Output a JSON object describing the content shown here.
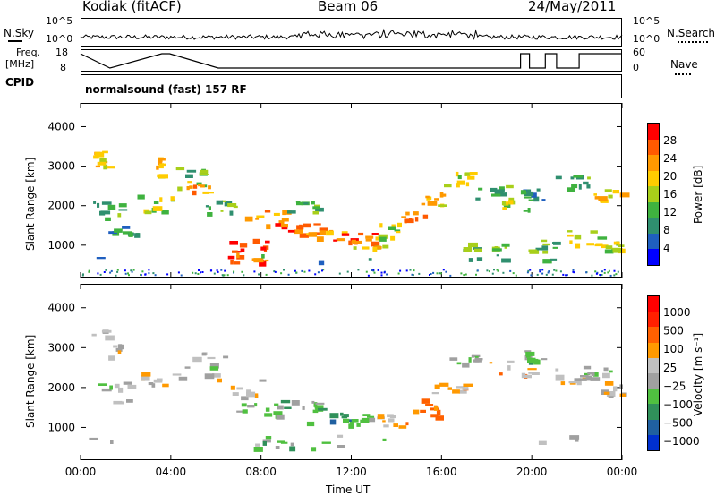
{
  "header": {
    "site": "Kodiak (fitACF)",
    "beam": "Beam 06",
    "date": "24/May/2011"
  },
  "noise_panel": {
    "left_label": "N.Sky",
    "right_label": "N.Search",
    "y_ticks": [
      "10^5",
      "10^0"
    ]
  },
  "freq_panel": {
    "left_label_1": "Freq.",
    "left_label_2": "[MHz]",
    "left_ticks": [
      "18",
      "8"
    ],
    "right_label": "Nave",
    "right_ticks": [
      "60",
      "0"
    ]
  },
  "cpid": {
    "label": "CPID",
    "value": "normalsound (fast) 157 RF"
  },
  "colors": {
    "power": [
      "#0000ff",
      "#1f5fbf",
      "#2f8f6f",
      "#3fb23f",
      "#a8cf1a",
      "#ffcc00",
      "#ff9900",
      "#ff5a00",
      "#ff0000"
    ],
    "velocity": [
      "#0030d0",
      "#2060a0",
      "#30905a",
      "#50c040",
      "#a0a0a0",
      "#c0c0c0",
      "#ff9900",
      "#ff6000",
      "#ff2000",
      "#ff0000"
    ]
  },
  "chart_data": [
    {
      "type": "heatmap",
      "title": "Power",
      "xlabel": "Time UT",
      "ylabel": "Slant Range [km]",
      "x_ticks": [
        "00:00",
        "04:00",
        "08:00",
        "12:00",
        "16:00",
        "20:00",
        "00:00"
      ],
      "y_ticks": [
        "1000",
        "2000",
        "3000",
        "4000"
      ],
      "ylim": [
        180,
        4600
      ],
      "colorbar_label": "Power [dB]",
      "colorbar_ticks": [
        "4",
        "8",
        "12",
        "16",
        "20",
        "24",
        "28"
      ],
      "colorbar_range": [
        0,
        32
      ]
    },
    {
      "type": "heatmap",
      "title": "Velocity",
      "xlabel": "Time UT",
      "ylabel": "Slant Range [km]",
      "x_ticks": [
        "00:00",
        "04:00",
        "08:00",
        "12:00",
        "16:00",
        "20:00",
        "00:00"
      ],
      "y_ticks": [
        "1000",
        "2000",
        "3000",
        "4000"
      ],
      "ylim": [
        180,
        4600
      ],
      "colorbar_label": "Velocity [m s⁻¹]",
      "colorbar_ticks": [
        "1000",
        "500",
        "100",
        "25",
        "−25",
        "−100",
        "−500",
        "−1000"
      ]
    }
  ],
  "x_axis_title": "Time UT"
}
